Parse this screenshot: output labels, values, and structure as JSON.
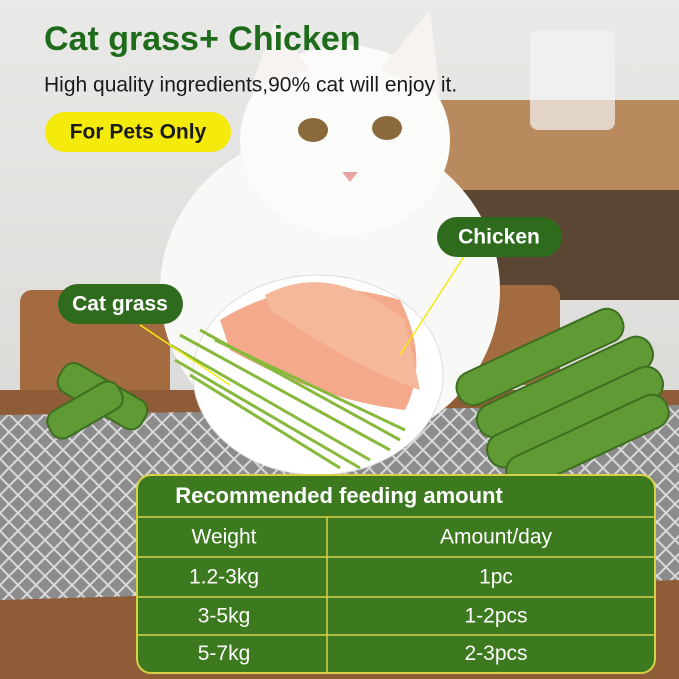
{
  "header": {
    "title": "Cat grass+ Chicken",
    "subtitle": "High quality ingredients,90% cat will enjoy it.",
    "badge": "For Pets Only"
  },
  "callouts": {
    "chicken": "Chicken",
    "cat_grass": "Cat grass"
  },
  "table": {
    "title": "Recommended feeding amount",
    "columns": [
      "Weight",
      "Amount/day"
    ],
    "rows": [
      [
        "1.2-3kg",
        "1pc"
      ],
      [
        "3-5kg",
        "1-2pcs"
      ],
      [
        "5-7kg",
        "2-3pcs"
      ]
    ]
  }
}
